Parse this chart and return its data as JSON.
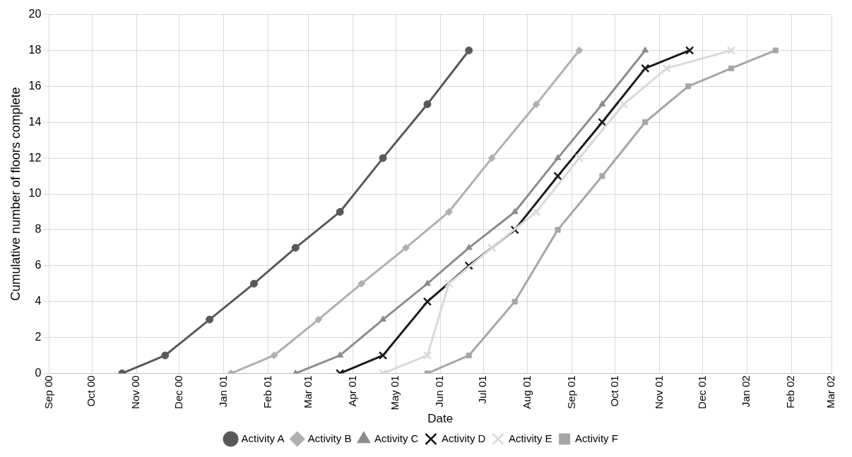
{
  "chart_data": {
    "type": "line",
    "xlabel": "Date",
    "ylabel": "Cumulative number of floors complete",
    "xlim": [
      "2000-09-01",
      "2002-03-01"
    ],
    "xticks": [
      {
        "value": "2000-09-01",
        "label": "Sep 00"
      },
      {
        "value": "2000-10-01",
        "label": "Oct 00"
      },
      {
        "value": "2000-11-01",
        "label": "Nov 00"
      },
      {
        "value": "2000-12-01",
        "label": "Dec 00"
      },
      {
        "value": "2001-01-01",
        "label": "Jan 01"
      },
      {
        "value": "2001-02-01",
        "label": "Feb 01"
      },
      {
        "value": "2001-03-01",
        "label": "Mar 01"
      },
      {
        "value": "2001-04-01",
        "label": "Apr 01"
      },
      {
        "value": "2001-05-01",
        "label": "May 01"
      },
      {
        "value": "2001-06-01",
        "label": "Jun 01"
      },
      {
        "value": "2001-07-01",
        "label": "Jul 01"
      },
      {
        "value": "2001-08-01",
        "label": "Aug 01"
      },
      {
        "value": "2001-09-01",
        "label": "Sep 01"
      },
      {
        "value": "2001-10-01",
        "label": "Oct 01"
      },
      {
        "value": "2001-11-01",
        "label": "Nov 01"
      },
      {
        "value": "2001-12-01",
        "label": "Dec 01"
      },
      {
        "value": "2002-01-01",
        "label": "Jan 02"
      },
      {
        "value": "2002-02-01",
        "label": "Feb 02"
      },
      {
        "value": "2002-03-01",
        "label": "Mar 02"
      }
    ],
    "ylim": [
      0,
      20
    ],
    "yticks": [
      0,
      2,
      4,
      6,
      8,
      10,
      12,
      14,
      16,
      18,
      20
    ],
    "grid": true,
    "legend": "bottom",
    "series": [
      {
        "name": "Activity A",
        "color": "#595959",
        "marker": "circle",
        "x": [
          "2000-10-22",
          "2000-11-21",
          "2000-12-22",
          "2001-01-22",
          "2001-02-20",
          "2001-03-23",
          "2001-04-22",
          "2001-05-23",
          "2001-06-21"
        ],
        "values": [
          0,
          1,
          3,
          5,
          7,
          9,
          12,
          15,
          18
        ]
      },
      {
        "name": "Activity B",
        "color": "#b0b0b0",
        "marker": "diamond",
        "x": [
          "2001-01-06",
          "2001-02-05",
          "2001-03-08",
          "2001-04-07",
          "2001-05-08",
          "2001-06-07",
          "2001-07-07",
          "2001-08-07",
          "2001-09-06"
        ],
        "values": [
          0,
          1,
          3,
          5,
          7,
          9,
          12,
          15,
          18
        ]
      },
      {
        "name": "Activity C",
        "color": "#8c8c8c",
        "marker": "triangle",
        "x": [
          "2001-02-20",
          "2001-03-23",
          "2001-04-22",
          "2001-05-23",
          "2001-06-21",
          "2001-07-23",
          "2001-08-22",
          "2001-09-22",
          "2001-10-22"
        ],
        "values": [
          0,
          1,
          3,
          5,
          7,
          9,
          12,
          15,
          18
        ]
      },
      {
        "name": "Activity D",
        "color": "#1a1a1a",
        "marker": "cross",
        "x": [
          "2001-03-23",
          "2001-04-22",
          "2001-05-23",
          "2001-06-21",
          "2001-07-23",
          "2001-08-22",
          "2001-09-22",
          "2001-10-22",
          "2001-11-22"
        ],
        "values": [
          0,
          1,
          4,
          6,
          8,
          11,
          14,
          17,
          18
        ]
      },
      {
        "name": "Activity E",
        "color": "#d9d9d9",
        "marker": "cross",
        "x": [
          "2001-04-22",
          "2001-05-23",
          "2001-06-07",
          "2001-07-07",
          "2001-08-07",
          "2001-09-06",
          "2001-10-07",
          "2001-11-06",
          "2001-12-21"
        ],
        "values": [
          0,
          1,
          5,
          7,
          9,
          12,
          15,
          17,
          18
        ]
      },
      {
        "name": "Activity F",
        "color": "#a6a6a6",
        "marker": "square",
        "x": [
          "2001-05-23",
          "2001-06-21",
          "2001-07-23",
          "2001-08-22",
          "2001-09-22",
          "2001-10-22",
          "2001-11-21",
          "2001-12-21",
          "2002-01-21"
        ],
        "values": [
          0,
          1,
          4,
          8,
          11,
          14,
          16,
          17,
          18
        ]
      }
    ]
  }
}
